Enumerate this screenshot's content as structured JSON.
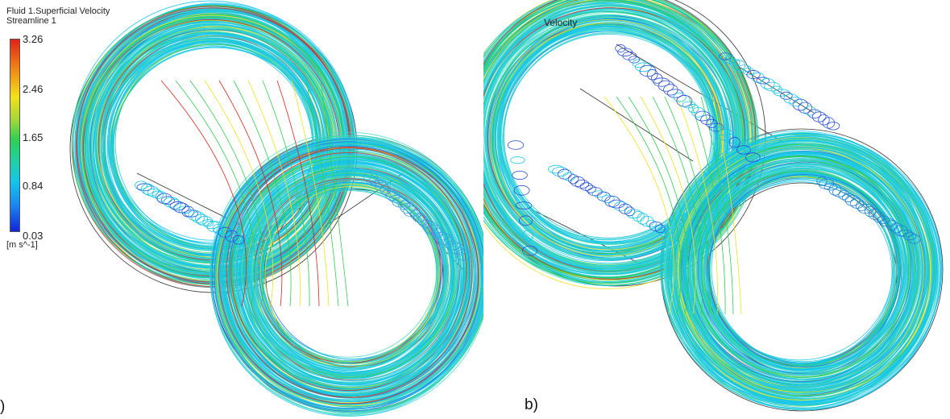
{
  "panel_a": {
    "legend_title": "Fluid 1.Superficial Velocity",
    "legend_subtitle": "Streamline 1",
    "ticks": [
      "3.26",
      "2.46",
      "1.65",
      "0.84",
      "0.03"
    ],
    "unit": "[m s^-1]",
    "label": ")"
  },
  "panel_b": {
    "legend_title": "Velocity",
    "label": "b)"
  },
  "colors": {
    "low": "#1226d6",
    "mid_low": "#15c6e8",
    "mid": "#2fcf52",
    "mid_high": "#f2e21b",
    "high": "#e0221a",
    "geometry_line": "#333333"
  }
}
